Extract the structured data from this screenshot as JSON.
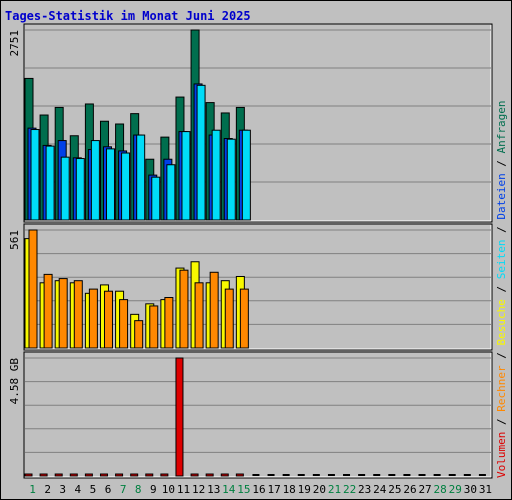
{
  "chart_data": {
    "type": "bar",
    "title": "Tages-Statistik im Monat Juni 2025",
    "categories": [
      "1",
      "2",
      "3",
      "4",
      "5",
      "6",
      "7",
      "8",
      "9",
      "10",
      "11",
      "12",
      "13",
      "14",
      "15",
      "16",
      "17",
      "18",
      "19",
      "20",
      "21",
      "22",
      "23",
      "24",
      "25",
      "26",
      "27",
      "28",
      "29",
      "30",
      "31"
    ],
    "weekend_days": [
      1,
      7,
      8,
      14,
      15,
      21,
      22,
      28,
      29
    ],
    "legend": [
      "Volumen",
      "Rechner",
      "Besuche",
      "Seiten",
      "Dateien",
      "Anfragen"
    ],
    "legend_separator": "/",
    "colors": {
      "anfragen": "#006e4e",
      "dateien": "#0040e8",
      "seiten": "#00dcf8",
      "besuche": "#f8f800",
      "rechner": "#ff8800",
      "volumen": "#dd0000",
      "weekday_label": "#000000",
      "weekend_label": "#008040",
      "title": "#0000cc",
      "panel_bg": "#c0c0c0",
      "gridline": "#808080"
    },
    "panels": [
      {
        "id": "hits",
        "max_label": "2751",
        "ylim": [
          0,
          2751
        ],
        "series": [
          {
            "name": "Anfragen",
            "key": "anfragen",
            "values": [
              2050,
              1520,
              1630,
              1220,
              1680,
              1430,
              1390,
              1540,
              880,
              1200,
              1780,
              2751,
              1700,
              1550,
              1630,
              0,
              0,
              0,
              0,
              0,
              0,
              0,
              0,
              0,
              0,
              0,
              0,
              0,
              0,
              0,
              0
            ]
          },
          {
            "name": "Dateien",
            "key": "dateien",
            "values": [
              1330,
              1080,
              1150,
              900,
              1020,
              1060,
              1000,
              1230,
              650,
              880,
              1280,
              1970,
              1230,
              1180,
              1300,
              0,
              0,
              0,
              0,
              0,
              0,
              0,
              0,
              0,
              0,
              0,
              0,
              0,
              0,
              0,
              0
            ]
          },
          {
            "name": "Seiten",
            "key": "seiten",
            "values": [
              1310,
              1070,
              910,
              890,
              1150,
              1030,
              970,
              1230,
              620,
              800,
              1280,
              1950,
              1300,
              1170,
              1300,
              0,
              0,
              0,
              0,
              0,
              0,
              0,
              0,
              0,
              0,
              0,
              0,
              0,
              0,
              0,
              0
            ]
          }
        ]
      },
      {
        "id": "visits",
        "max_label": "561",
        "ylim": [
          0,
          561
        ],
        "series": [
          {
            "name": "Besuche",
            "key": "besuche",
            "values": [
              520,
              310,
              320,
              310,
              260,
              300,
              270,
              160,
              210,
              230,
              380,
              410,
              310,
              320,
              340,
              0,
              0,
              0,
              0,
              0,
              0,
              0,
              0,
              0,
              0,
              0,
              0,
              0,
              0,
              0,
              0
            ]
          },
          {
            "name": "Rechner",
            "key": "rechner",
            "values": [
              561,
              350,
              330,
              320,
              280,
              270,
              230,
              130,
              200,
              240,
              370,
              310,
              360,
              280,
              280,
              0,
              0,
              0,
              0,
              0,
              0,
              0,
              0,
              0,
              0,
              0,
              0,
              0,
              0,
              0,
              0
            ]
          }
        ]
      },
      {
        "id": "volume",
        "max_label": "4.58 GB",
        "ylim": [
          0,
          4.58
        ],
        "series": [
          {
            "name": "Volumen",
            "key": "volumen",
            "values": [
              0.07,
              0.03,
              0.03,
              0.03,
              0.06,
              0.03,
              0.03,
              0.03,
              0.03,
              0.03,
              4.58,
              0.06,
              0.04,
              0.05,
              0.03,
              0,
              0,
              0,
              0,
              0,
              0,
              0,
              0,
              0,
              0,
              0,
              0,
              0,
              0,
              0,
              0
            ]
          }
        ]
      }
    ]
  }
}
